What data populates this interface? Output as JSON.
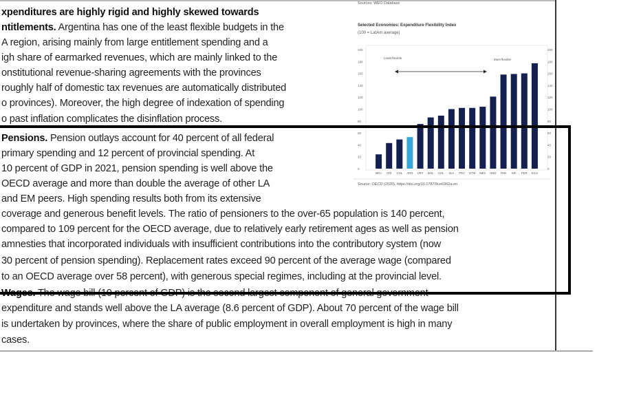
{
  "intro": {
    "lines": [
      {
        "bold": "xpenditures are highly rigid and highly skewed towards",
        "text": ""
      },
      {
        "bold": "ntitlements.",
        "text": " Argentina has one of the least flexible budgets in the"
      },
      {
        "bold": "",
        "text": "A region, arising mainly from large entitlement spending and a"
      },
      {
        "bold": "",
        "text": "igh share of earmarked revenues, which are mainly linked to the"
      },
      {
        "bold": "",
        "text": "onstitutional revenue-sharing agreements with the provinces"
      },
      {
        "bold": "",
        "text": "roughly half of domestic tax revenues are automatically distributed"
      },
      {
        "bold": "",
        "text": "o provinces). Moreover, the high degree of indexation of spending"
      },
      {
        "bold": "",
        "text": "o past inflation complicates the disinflation process."
      }
    ]
  },
  "pensions": {
    "lines": [
      {
        "bold": "Pensions.",
        "text": " Pension outlays account for 40 percent of all federal"
      },
      {
        "bold": "",
        "text": "primary spending and 12 percent of provincial spending. At"
      },
      {
        "bold": "",
        "text": "10 percent of GDP in 2021, pension spending is well above the"
      },
      {
        "bold": "",
        "text": "OECD average and more than double the average of other LA"
      },
      {
        "bold": "",
        "text": "and EM peers. High spending results both from its extensive"
      },
      {
        "bold": "",
        "text": "coverage and generous benefit levels. The ratio of pensioners to the over-65 population is 140 percent,"
      },
      {
        "bold": "",
        "text": "compared to 109 percent for the OECD average, due to relatively early retirement ages as well as pension"
      },
      {
        "bold": "",
        "text": "amnesties that incorporated individuals with insufficient contributions into the contributory system (now"
      },
      {
        "bold": "",
        "text": "30 percent of pension spending). Replacement rates exceed 90 percent of the average wage (compared"
      },
      {
        "bold": "",
        "text": "to an OECD average over 58 percent), with generous special regimes, including at the provincial level."
      }
    ]
  },
  "wages": {
    "lines": [
      {
        "bold": "Wages.",
        "text": " The wage bill (10 percent of GDP) is the second largest component of general government"
      },
      {
        "bold": "",
        "text": "expenditure and stands well above the LA average (8.6 percent of GDP). About 70 percent of the wage bill"
      },
      {
        "bold": "",
        "text": "is undertaken by provinces, where the share of public employment in overall employment is high in many"
      },
      {
        "bold": "",
        "text": "cases."
      }
    ]
  },
  "chart_top_source": "Sources: WEO Database",
  "chart_data": {
    "type": "bar",
    "title": "Selected Economies: Expenditure Flexibility Index",
    "subtitle": "(100 = LatAm average)",
    "categories": [
      "BRA",
      "CRI",
      "COL",
      "ARG",
      "URY",
      "BOL",
      "CHL",
      "SLV",
      "PRY",
      "GTM",
      "MEX",
      "HND",
      "PAN",
      "NIC",
      "PER",
      "ECU"
    ],
    "values": [
      24,
      43,
      49,
      53,
      75,
      86,
      89,
      100,
      102,
      102,
      104,
      121,
      158,
      159,
      160,
      177
    ],
    "highlight": "ARG",
    "colors": {
      "bar": "#14204f",
      "highlight": "#3aa6d8"
    },
    "ylim": [
      0,
      200
    ],
    "yticks": [
      0,
      20,
      40,
      60,
      80,
      100,
      120,
      140,
      160,
      180,
      200
    ],
    "secondary_axis": true,
    "annotations": {
      "left": "Least flexible",
      "right": "Most flexible"
    },
    "source": "Source: OECD (2020), https://doi.org/10.1787/9ce6362a-en"
  }
}
